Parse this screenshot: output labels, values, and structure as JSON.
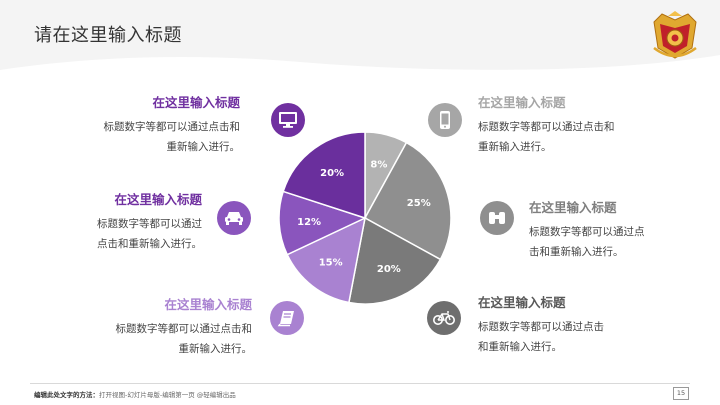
{
  "slide": {
    "title": "请在这里输入标题",
    "page_number": "15"
  },
  "colors": {
    "purple_dark": "#6a2f9d",
    "purple_mid": "#8a55bd",
    "purple_light": "#a982d1",
    "gray_dark": "#7a7a7a",
    "gray_mid": "#8f8f8f",
    "gray_light": "#b3b3b3",
    "heading_purple": "#7030a0",
    "heading_gray": "#a6a6a6"
  },
  "blocks": {
    "top_left": {
      "heading": "在这里输入标题",
      "body": "标题数字等都可以通过点击和\n重新输入进行。",
      "icon": "monitor-icon"
    },
    "mid_left": {
      "heading": "在这里输入标题",
      "body": "标题数字等都可以通过\n点击和重新输入进行。",
      "icon": "car-icon"
    },
    "bottom_left": {
      "heading": "在这里输入标题",
      "body": "标题数字等都可以通过点击和\n重新输入进行。",
      "icon": "book-icon"
    },
    "top_right": {
      "heading": "在这里输入标题",
      "body": "标题数字等都可以通过点击和\n重新输入进行。",
      "icon": "phone-icon"
    },
    "mid_right": {
      "heading": "在这里输入标题",
      "body": "标题数字等都可以通过点\n击和重新输入进行。",
      "icon": "binoculars-icon"
    },
    "bottom_right": {
      "heading": "在这里输入标题",
      "body": "标题数字等都可以通过点击\n和重新输入进行。",
      "icon": "bicycle-icon"
    }
  },
  "chart_data": {
    "type": "pie",
    "start_angle_deg": 0,
    "direction": "clockwise",
    "slices": [
      {
        "label": "8%",
        "value": 8,
        "color": "#b3b3b3"
      },
      {
        "label": "25%",
        "value": 25,
        "color": "#8f8f8f"
      },
      {
        "label": "20%",
        "value": 20,
        "color": "#7a7a7a"
      },
      {
        "label": "15%",
        "value": 15,
        "color": "#a982d1"
      },
      {
        "label": "12%",
        "value": 12,
        "color": "#8a55bd"
      },
      {
        "label": "20%",
        "value": 20,
        "color": "#6a2f9d"
      }
    ]
  },
  "footer": {
    "bold_text": "编辑此处文字的方法：",
    "text": "打开视图-幻灯片母版-编辑第一页 @轻编辑出品"
  }
}
